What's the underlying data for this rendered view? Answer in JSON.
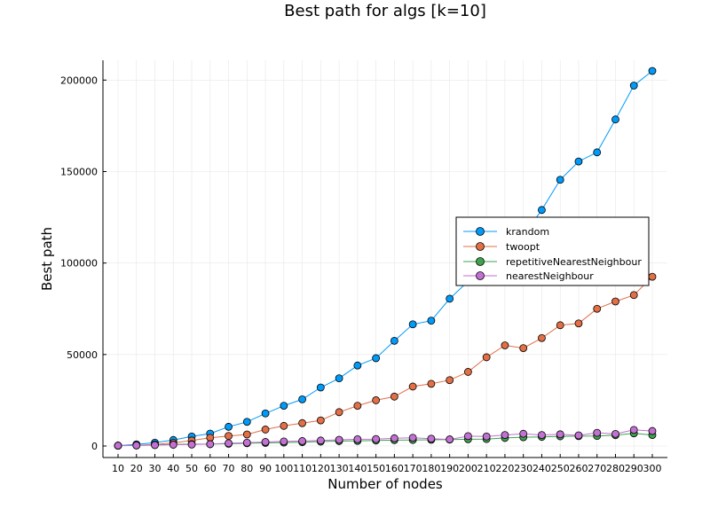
{
  "chart_data": {
    "type": "line",
    "title": "Best path for algs [k=10]",
    "xlabel": "Number of nodes",
    "ylabel": "Best path",
    "xlim": [
      10,
      300
    ],
    "ylim": [
      0,
      205000
    ],
    "grid": true,
    "legend_placement": "right",
    "x": [
      10,
      20,
      30,
      40,
      50,
      60,
      70,
      80,
      90,
      100,
      110,
      120,
      130,
      140,
      150,
      160,
      170,
      180,
      190,
      200,
      210,
      220,
      230,
      240,
      250,
      260,
      270,
      280,
      290,
      300
    ],
    "x_tick_labels": [
      "10",
      "20",
      "30",
      "40",
      "50",
      "60",
      "70",
      "80",
      "90",
      "100",
      "110",
      "120",
      "130",
      "140",
      "150",
      "160",
      "170",
      "180",
      "190",
      "200",
      "210",
      "220",
      "230",
      "240",
      "250",
      "260",
      "270",
      "280",
      "290",
      "300"
    ],
    "y_ticks": [
      0,
      50000,
      100000,
      150000,
      200000
    ],
    "y_tick_labels": [
      "0",
      "50000",
      "100000",
      "150000",
      "200000"
    ],
    "series": [
      {
        "name": "krandom",
        "color": "#009af9",
        "values": [
          200,
          900,
          1800,
          3300,
          5200,
          6800,
          10500,
          13200,
          17800,
          22000,
          25500,
          32000,
          37000,
          44000,
          48000,
          57500,
          66500,
          68500,
          80500,
          90000,
          95000,
          108000,
          115000,
          129000,
          145500,
          155500,
          160500,
          178500,
          197000,
          205000
        ]
      },
      {
        "name": "twoopt",
        "color": "#e26f46",
        "values": [
          200,
          400,
          800,
          1700,
          3000,
          4500,
          5500,
          6300,
          9000,
          11000,
          12500,
          14000,
          18500,
          22000,
          25000,
          27000,
          32500,
          34000,
          36000,
          40500,
          48500,
          55000,
          53500,
          59000,
          66000,
          67000,
          75000,
          79000,
          82500,
          92500
        ]
      },
      {
        "name": "repetitiveNearestNeighbour",
        "color": "#3da44d",
        "values": [
          200,
          300,
          600,
          800,
          1000,
          1000,
          1200,
          1500,
          1700,
          1900,
          2100,
          2400,
          2700,
          2800,
          3000,
          3200,
          3300,
          3400,
          3500,
          3700,
          3800,
          4400,
          4800,
          5000,
          5300,
          5400,
          5500,
          5900,
          6900,
          6000
        ]
      },
      {
        "name": "nearestNeighbour",
        "color": "#c271d2",
        "values": [
          200,
          300,
          500,
          700,
          800,
          1000,
          1500,
          1800,
          2200,
          2500,
          2700,
          3000,
          3400,
          3700,
          3800,
          4200,
          4500,
          4000,
          3600,
          5400,
          5200,
          6000,
          6700,
          6000,
          6400,
          5800,
          7200,
          6600,
          8800,
          8200
        ]
      }
    ]
  }
}
